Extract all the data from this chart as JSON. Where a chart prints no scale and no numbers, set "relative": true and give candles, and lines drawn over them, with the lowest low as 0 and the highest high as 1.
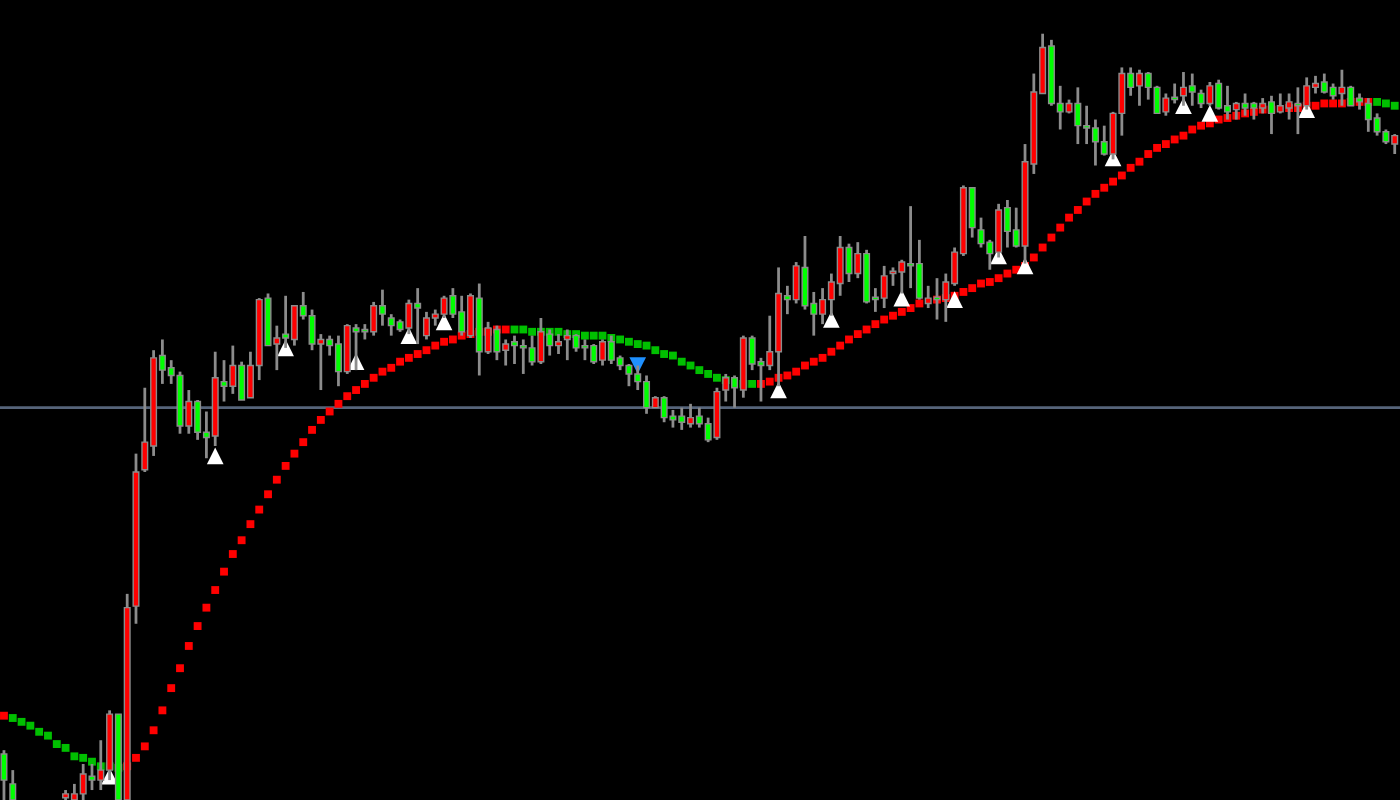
{
  "chart_data": {
    "type": "candlestick",
    "relative": true,
    "categories": [
      null,
      null,
      null,
      null,
      null,
      null,
      null,
      null,
      null,
      null,
      null,
      null,
      null,
      null,
      null,
      null,
      null,
      null,
      null,
      null,
      null,
      null,
      null,
      null,
      null,
      null,
      null,
      null,
      null,
      null,
      null,
      null,
      null,
      null,
      null,
      null,
      null,
      null,
      null,
      null,
      null,
      null,
      null,
      null,
      null,
      null,
      null,
      null,
      null,
      null,
      null,
      null,
      null,
      null,
      null,
      null,
      null,
      null,
      null,
      null,
      null,
      null,
      null,
      null,
      null,
      null,
      null,
      null,
      null,
      null,
      null,
      null,
      null,
      null,
      null,
      null,
      null,
      null,
      null,
      null,
      null,
      null,
      null,
      null,
      null,
      null,
      null,
      null,
      null,
      null,
      null,
      null,
      null,
      null,
      null,
      null,
      null,
      null,
      null,
      null,
      null,
      null,
      null,
      null,
      null,
      null,
      null,
      null,
      null,
      null,
      null,
      null,
      null,
      null,
      null,
      null,
      null,
      null,
      null,
      null,
      null,
      null,
      null,
      null,
      null,
      null,
      null,
      null,
      null,
      null,
      null,
      null,
      null,
      null,
      null,
      null,
      null,
      null,
      null,
      null,
      null,
      null,
      null,
      null,
      null,
      null,
      null,
      null,
      null,
      null,
      null,
      null,
      null,
      null,
      null,
      null,
      null,
      null,
      null
    ],
    "ohlc": [
      [
        0.06,
        0.065,
        0,
        0.026
      ],
      [
        0.021,
        0.039,
        0,
        0
      ],
      null,
      null,
      null,
      null,
      null,
      [
        0.003,
        0.013,
        0,
        0.008
      ],
      [
        0,
        0.021,
        0,
        0.008
      ],
      [
        0.008,
        0.047,
        0,
        0.034
      ],
      [
        0.031,
        0.047,
        0.013,
        0.026
      ],
      [
        0.026,
        0.078,
        0.013,
        0.039
      ],
      [
        0.039,
        0.117,
        0.026,
        0.112
      ],
      [
        0.112,
        0.112,
        0,
        0
      ],
      [
        0,
        0.269,
        0,
        0.251
      ],
      [
        0.253,
        0.452,
        0.23,
        0.428
      ],
      [
        0.431,
        0.538,
        0.428,
        0.467
      ],
      [
        0.462,
        0.587,
        0.449,
        0.577
      ],
      [
        0.58,
        0.601,
        0.543,
        0.561
      ],
      [
        0.564,
        0.574,
        0.543,
        0.554
      ],
      [
        0.554,
        0.559,
        0.478,
        0.488
      ],
      [
        0.488,
        0.535,
        0.478,
        0.52
      ],
      [
        0.52,
        0.522,
        0.47,
        0.48
      ],
      [
        0.48,
        0.507,
        0.446,
        0.473
      ],
      [
        0.475,
        0.585,
        0.462,
        0.551
      ],
      [
        0.546,
        0.574,
        0.52,
        0.54
      ],
      [
        0.54,
        0.593,
        0.53,
        0.567
      ],
      [
        0.567,
        0.572,
        0.522,
        0.522
      ],
      [
        0.525,
        0.585,
        0.525,
        0.567
      ],
      [
        0.567,
        0.655,
        0.548,
        0.653
      ],
      [
        0.655,
        0.661,
        0.593,
        0.593
      ],
      [
        0.595,
        0.619,
        0.561,
        0.603
      ],
      [
        0.608,
        0.658,
        0.59,
        0.603
      ],
      [
        0.601,
        0.645,
        0.593,
        0.645
      ],
      [
        0.645,
        0.663,
        0.627,
        0.632
      ],
      [
        0.632,
        0.64,
        0.587,
        0.595
      ],
      [
        0.595,
        0.608,
        0.535,
        0.601
      ],
      [
        0.601,
        0.606,
        0.58,
        0.593
      ],
      [
        0.595,
        0.606,
        0.54,
        0.559
      ],
      [
        0.559,
        0.621,
        0.556,
        0.619
      ],
      [
        0.616,
        0.621,
        0.561,
        0.611
      ],
      [
        0.614,
        0.621,
        0.601,
        0.611
      ],
      [
        0.611,
        0.65,
        0.606,
        0.645
      ],
      [
        0.645,
        0.666,
        0.619,
        0.634
      ],
      [
        0.629,
        0.634,
        0.606,
        0.619
      ],
      [
        0.624,
        0.627,
        0.611,
        0.614
      ],
      [
        0.616,
        0.653,
        0.608,
        0.648
      ],
      [
        0.648,
        0.668,
        0.595,
        0.642
      ],
      [
        0.606,
        0.637,
        0.601,
        0.629
      ],
      [
        0.629,
        0.64,
        0.619,
        0.634
      ],
      [
        0.634,
        0.658,
        0.629,
        0.655
      ],
      [
        0.658,
        0.668,
        0.629,
        0.634
      ],
      [
        0.637,
        0.658,
        0.606,
        0.611
      ],
      [
        0.606,
        0.661,
        0.603,
        0.658
      ],
      [
        0.655,
        0.674,
        0.554,
        0.585
      ],
      [
        0.585,
        0.624,
        0.582,
        0.616
      ],
      [
        0.614,
        0.619,
        0.574,
        0.585
      ],
      [
        0.587,
        0.601,
        0.567,
        0.595
      ],
      [
        0.598,
        0.606,
        0.569,
        0.593
      ],
      [
        0.593,
        0.601,
        0.556,
        0.59
      ],
      [
        0.59,
        0.606,
        0.567,
        0.572
      ],
      [
        0.572,
        0.629,
        0.569,
        0.611
      ],
      [
        0.608,
        0.614,
        0.58,
        0.593
      ],
      [
        0.593,
        0.608,
        0.582,
        0.598
      ],
      [
        0.601,
        0.614,
        0.574,
        0.606
      ],
      [
        0.606,
        0.608,
        0.585,
        0.59
      ],
      [
        0.593,
        0.601,
        0.574,
        0.59
      ],
      [
        0.593,
        0.595,
        0.569,
        0.572
      ],
      [
        0.574,
        0.601,
        0.567,
        0.598
      ],
      [
        0.598,
        0.606,
        0.569,
        0.574
      ],
      [
        0.577,
        0.58,
        0.561,
        0.567
      ],
      [
        0.567,
        0.569,
        0.54,
        0.556
      ],
      [
        0.556,
        0.567,
        0.535,
        0.546
      ],
      [
        0.546,
        0.554,
        0.504,
        0.512
      ],
      [
        0.512,
        0.527,
        0.512,
        0.525
      ],
      [
        0.525,
        0.527,
        0.493,
        0.499
      ],
      [
        0.501,
        0.509,
        0.486,
        0.496
      ],
      [
        0.501,
        0.512,
        0.483,
        0.493
      ],
      [
        0.491,
        0.517,
        0.486,
        0.499
      ],
      [
        0.501,
        0.512,
        0.486,
        0.491
      ],
      [
        0.491,
        0.499,
        0.467,
        0.47
      ],
      [
        0.473,
        0.538,
        0.47,
        0.533
      ],
      [
        0.535,
        0.556,
        0.52,
        0.551
      ],
      [
        0.551,
        0.554,
        0.512,
        0.538
      ],
      [
        0.535,
        0.606,
        0.525,
        0.603
      ],
      [
        0.603,
        0.606,
        0.561,
        0.569
      ],
      [
        0.572,
        0.577,
        0.52,
        0.567
      ],
      [
        0.567,
        0.632,
        0.561,
        0.585
      ],
      [
        0.585,
        0.695,
        0.54,
        0.661
      ],
      [
        0.658,
        0.671,
        0.634,
        0.653
      ],
      [
        0.653,
        0.702,
        0.648,
        0.697
      ],
      [
        0.695,
        0.736,
        0.64,
        0.645
      ],
      [
        0.648,
        0.663,
        0.606,
        0.634
      ],
      [
        0.634,
        0.668,
        0.621,
        0.653
      ],
      [
        0.653,
        0.687,
        0.632,
        0.676
      ],
      [
        0.674,
        0.736,
        0.658,
        0.721
      ],
      [
        0.721,
        0.726,
        0.676,
        0.687
      ],
      [
        0.687,
        0.728,
        0.681,
        0.713
      ],
      [
        0.713,
        0.718,
        0.648,
        0.65
      ],
      [
        0.655,
        0.668,
        0.637,
        0.653
      ],
      [
        0.655,
        0.697,
        0.642,
        0.684
      ],
      [
        0.687,
        0.695,
        0.671,
        0.689
      ],
      [
        0.689,
        0.705,
        0.661,
        0.702
      ],
      [
        0.7,
        0.775,
        0.668,
        0.697
      ],
      [
        0.7,
        0.731,
        0.653,
        0.655
      ],
      [
        0.648,
        0.671,
        0.642,
        0.655
      ],
      [
        0.655,
        0.681,
        0.627,
        0.653
      ],
      [
        0.653,
        0.687,
        0.624,
        0.676
      ],
      [
        0.674,
        0.721,
        0.671,
        0.715
      ],
      [
        0.713,
        0.802,
        0.71,
        0.799
      ],
      [
        0.799,
        0.799,
        0.734,
        0.747
      ],
      [
        0.744,
        0.76,
        0.721,
        0.726
      ],
      [
        0.728,
        0.731,
        0.692,
        0.713
      ],
      [
        0.715,
        0.778,
        0.708,
        0.77
      ],
      [
        0.773,
        0.783,
        0.721,
        0.742
      ],
      [
        0.744,
        0.773,
        0.721,
        0.723
      ],
      [
        0.723,
        0.856,
        0.7,
        0.833
      ],
      [
        0.83,
        0.948,
        0.817,
        0.924
      ],
      [
        0.922,
        1,
        0.922,
        0.982
      ],
      [
        0.984,
        0.992,
        0.906,
        0.909
      ],
      [
        0.909,
        0.932,
        0.875,
        0.898
      ],
      [
        0.898,
        0.914,
        0.896,
        0.909
      ],
      [
        0.909,
        0.93,
        0.856,
        0.88
      ],
      [
        0.88,
        0.906,
        0.856,
        0.877
      ],
      [
        0.877,
        0.888,
        0.828,
        0.859
      ],
      [
        0.859,
        0.88,
        0.841,
        0.843
      ],
      [
        0.843,
        0.898,
        0.836,
        0.896
      ],
      [
        0.896,
        0.956,
        0.867,
        0.948
      ],
      [
        0.948,
        0.956,
        0.919,
        0.93
      ],
      [
        0.932,
        0.953,
        0.906,
        0.948
      ],
      [
        0.948,
        0.95,
        0.914,
        0.93
      ],
      [
        0.93,
        0.932,
        0.896,
        0.896
      ],
      [
        0.898,
        0.922,
        0.893,
        0.916
      ],
      [
        0.916,
        0.935,
        0.909,
        0.914
      ],
      [
        0.919,
        0.95,
        0.906,
        0.93
      ],
      [
        0.932,
        0.948,
        0.906,
        0.924
      ],
      [
        0.922,
        0.927,
        0.903,
        0.909
      ],
      [
        0.909,
        0.937,
        0.906,
        0.932
      ],
      [
        0.935,
        0.94,
        0.901,
        0.903
      ],
      [
        0.906,
        0.932,
        0.888,
        0.898
      ],
      [
        0.901,
        0.911,
        0.888,
        0.909
      ],
      [
        0.909,
        0.922,
        0.893,
        0.903
      ],
      [
        0.909,
        0.911,
        0.888,
        0.903
      ],
      [
        0.903,
        0.916,
        0.896,
        0.909
      ],
      [
        0.911,
        0.919,
        0.869,
        0.896
      ],
      [
        0.898,
        0.922,
        0.896,
        0.906
      ],
      [
        0.903,
        0.922,
        0.888,
        0.911
      ],
      [
        0.909,
        0.93,
        0.869,
        0.906
      ],
      [
        0.906,
        0.943,
        0.901,
        0.932
      ],
      [
        0.93,
        0.945,
        0.922,
        0.935
      ],
      [
        0.937,
        0.948,
        0.922,
        0.924
      ],
      [
        0.93,
        0.935,
        0.914,
        0.919
      ],
      [
        0.922,
        0.953,
        0.906,
        0.93
      ],
      [
        0.93,
        0.932,
        0.906,
        0.906
      ],
      [
        0.916,
        0.922,
        0.901,
        0.911
      ],
      [
        0.909,
        0.916,
        0.872,
        0.888
      ],
      [
        0.89,
        0.896,
        0.867,
        0.872
      ],
      [
        0.872,
        0.875,
        0.856,
        0.859
      ],
      [
        0.856,
        0.869,
        0.843,
        0.867
      ]
    ],
    "colors": [
      "#00ff00",
      "#00ff00",
      null,
      null,
      null,
      null,
      null,
      "#ff0000",
      "#ff0000",
      "#ff0000",
      "#00ff00",
      "#ff0000",
      "#ff0000",
      "#00ff00",
      "#ff0000",
      "#ff0000",
      "#ff0000",
      "#ff0000",
      "#00ff00",
      "#00ff00",
      "#00ff00",
      "#ff0000",
      "#00ff00",
      "#00ff00",
      "#ff0000",
      "#00ff00",
      "#ff0000",
      "#00ff00",
      "#ff0000",
      "#ff0000",
      "#00ff00",
      "#ff0000",
      "#00ff00",
      "#ff0000",
      "#00ff00",
      "#00ff00",
      "#ff0000",
      "#00ff00",
      "#00ff00",
      "#ff0000",
      "#00ff00",
      "#00ff00",
      "#ff0000",
      "#00ff00",
      "#00ff00",
      "#00ff00",
      "#ff0000",
      "#00ff00",
      "#ff0000",
      "#ff0000",
      "#ff0000",
      "#00ff00",
      "#00ff00",
      "#ff0000",
      "#00ff00",
      "#ff0000",
      "#00ff00",
      "#ff0000",
      "#00ff00",
      "#00ff00",
      "#00ff00",
      "#ff0000",
      "#00ff00",
      "#ff0000",
      "#ff0000",
      "#00ff00",
      "#00ff00",
      "#00ff00",
      "#ff0000",
      "#00ff00",
      "#00ff00",
      "#00ff00",
      "#00ff00",
      "#00ff00",
      "#ff0000",
      "#00ff00",
      "#00ff00",
      "#00ff00",
      "#ff0000",
      "#00ff00",
      "#00ff00",
      "#ff0000",
      "#ff0000",
      "#00ff00",
      "#ff0000",
      "#00ff00",
      "#00ff00",
      "#ff0000",
      "#ff0000",
      "#00ff00",
      "#ff0000",
      "#00ff00",
      "#00ff00",
      "#ff0000",
      "#ff0000",
      "#ff0000",
      "#00ff00",
      "#ff0000",
      "#00ff00",
      "#00ff00",
      "#ff0000",
      "#ff0000",
      "#ff0000",
      "#00ff00",
      "#00ff00",
      "#ff0000",
      "#00ff00",
      "#ff0000",
      "#ff0000",
      "#ff0000",
      "#00ff00",
      "#00ff00",
      "#00ff00",
      "#ff0000",
      "#00ff00",
      "#00ff00",
      "#ff0000",
      "#ff0000",
      "#ff0000",
      "#00ff00",
      "#00ff00",
      "#ff0000",
      "#00ff00",
      "#00ff00",
      "#00ff00",
      "#00ff00",
      "#ff0000",
      "#ff0000",
      "#00ff00",
      "#ff0000",
      "#00ff00",
      "#00ff00",
      "#ff0000",
      "#00ff00",
      "#ff0000",
      "#00ff00",
      "#00ff00",
      "#ff0000",
      "#00ff00",
      "#00ff00",
      "#ff0000",
      "#00ff00",
      "#00ff00",
      "#ff0000",
      "#00ff00",
      "#ff0000",
      "#ff0000",
      "#00ff00",
      "#ff0000",
      "#ff0000",
      "#00ff00",
      "#00ff00",
      "#ff0000",
      "#00ff00",
      "#00ff00",
      "#00ff00",
      "#00ff00",
      "#00ff00",
      "#ff0000"
    ],
    "series": [
      {
        "type": "scatter",
        "marker": "square",
        "values": [
          0.11,
          0.107,
          0.102,
          0.097,
          0.089,
          0.084,
          0.073,
          0.068,
          0.057,
          0.055,
          0.05,
          0.044,
          0.044,
          0.042,
          0.044,
          0.055,
          0.07,
          0.091,
          0.117,
          0.146,
          0.172,
          0.201,
          0.227,
          0.251,
          0.274,
          0.298,
          0.321,
          0.339,
          0.36,
          0.379,
          0.399,
          0.418,
          0.436,
          0.452,
          0.467,
          0.483,
          0.496,
          0.507,
          0.517,
          0.527,
          0.535,
          0.543,
          0.551,
          0.559,
          0.564,
          0.572,
          0.577,
          0.582,
          0.587,
          0.593,
          0.598,
          0.601,
          0.606,
          0.608,
          0.611,
          0.611,
          0.614,
          0.614,
          0.614,
          0.614,
          0.611,
          0.611,
          0.611,
          0.611,
          0.608,
          0.608,
          0.606,
          0.606,
          0.606,
          0.603,
          0.601,
          0.598,
          0.595,
          0.593,
          0.587,
          0.582,
          0.58,
          0.572,
          0.567,
          0.561,
          0.556,
          0.551,
          0.548,
          null,
          0.543,
          0.543,
          0.543,
          0.546,
          0.551,
          0.554,
          0.559,
          0.567,
          0.572,
          0.577,
          0.585,
          0.593,
          0.601,
          0.608,
          0.614,
          0.621,
          0.627,
          0.632,
          0.637,
          0.642,
          0.648,
          null,
          0.653,
          0.655,
          0.658,
          0.663,
          0.668,
          0.674,
          0.676,
          0.681,
          0.687,
          0.692,
          0.697,
          0.708,
          0.721,
          0.734,
          0.747,
          0.76,
          0.77,
          0.781,
          0.791,
          0.799,
          0.807,
          0.815,
          0.825,
          0.833,
          0.843,
          0.851,
          0.856,
          0.862,
          0.867,
          0.875,
          0.88,
          0.883,
          0.888,
          0.89,
          0.893,
          0.896,
          0.898,
          0.901,
          0.901,
          null,
          0.903,
          0.903,
          0.906,
          0.906,
          0.909,
          0.909,
          0.909,
          0.911,
          0.911,
          0.911,
          0.911,
          0.909,
          0.906
        ],
        "colors": [
          "#ff0000",
          "#00c000",
          "#00c000",
          "#00c000",
          "#00c000",
          "#00c000",
          "#00c000",
          "#00c000",
          "#00c000",
          "#00c000",
          "#00c000",
          "#00c000",
          "#00c000",
          "#00c000",
          "#ff0000",
          "#ff0000",
          "#ff0000",
          "#ff0000",
          "#ff0000",
          "#ff0000",
          "#ff0000",
          "#ff0000",
          "#ff0000",
          "#ff0000",
          "#ff0000",
          "#ff0000",
          "#ff0000",
          "#ff0000",
          "#ff0000",
          "#ff0000",
          "#ff0000",
          "#ff0000",
          "#ff0000",
          "#ff0000",
          "#ff0000",
          "#ff0000",
          "#ff0000",
          "#ff0000",
          "#ff0000",
          "#ff0000",
          "#ff0000",
          "#ff0000",
          "#ff0000",
          "#ff0000",
          "#ff0000",
          "#ff0000",
          "#ff0000",
          "#ff0000",
          "#ff0000",
          "#ff0000",
          "#ff0000",
          "#ff0000",
          "#ff0000",
          "#ff0000",
          "#ff0000",
          "#ff0000",
          "#ff0000",
          "#ff0000",
          "#00c000",
          "#00c000",
          "#00c000",
          "#00c000",
          "#00c000",
          "#00c000",
          "#00c000",
          "#00c000",
          "#00c000",
          "#00c000",
          "#00c000",
          "#00c000",
          "#00c000",
          "#00c000",
          "#00c000",
          "#00c000",
          "#00c000",
          "#00c000",
          "#00c000",
          "#00c000",
          "#00c000",
          "#00c000",
          "#00c000",
          "#00c000",
          "#00c000",
          "#00c000",
          "#00c000",
          "#00c000",
          "#ff0000",
          "#ff0000",
          "#ff0000",
          "#ff0000",
          "#ff0000",
          "#ff0000",
          "#ff0000",
          "#ff0000",
          "#ff0000",
          "#ff0000",
          "#ff0000",
          "#ff0000",
          "#ff0000",
          "#ff0000",
          "#ff0000",
          "#ff0000",
          "#ff0000",
          "#ff0000",
          "#ff0000",
          "#ff0000",
          "#ff0000",
          "#ff0000",
          "#ff0000",
          "#ff0000",
          "#ff0000",
          "#ff0000",
          "#ff0000",
          "#ff0000",
          "#ff0000",
          "#ff0000",
          "#ff0000",
          "#ff0000",
          "#ff0000",
          "#ff0000",
          "#ff0000",
          "#ff0000",
          "#ff0000",
          "#ff0000",
          "#ff0000",
          "#ff0000",
          "#ff0000",
          "#ff0000",
          "#ff0000",
          "#ff0000",
          "#ff0000",
          "#ff0000",
          "#ff0000",
          "#ff0000",
          "#ff0000",
          "#ff0000",
          "#ff0000",
          "#ff0000",
          "#ff0000",
          "#ff0000",
          "#ff0000",
          "#ff0000",
          "#ff0000",
          "#ff0000",
          "#ff0000",
          "#ff0000",
          "#ff0000",
          "#ff0000",
          "#ff0000",
          "#ff0000",
          "#ff0000",
          "#ff0000",
          "#ff0000",
          "#ff0000",
          "#ff0000",
          "#ff0000",
          "#00c000",
          "#00c000",
          "#00c000"
        ]
      },
      {
        "type": "scatter",
        "marker": "triangle",
        "color": "#ffffff",
        "values": [
          null,
          null,
          null,
          null,
          null,
          null,
          null,
          null,
          null,
          null,
          null,
          null,
          0.031,
          null,
          null,
          null,
          null,
          null,
          null,
          null,
          null,
          null,
          null,
          null,
          0.449,
          null,
          null,
          null,
          null,
          null,
          null,
          null,
          0.59,
          null,
          null,
          null,
          null,
          null,
          null,
          null,
          0.572,
          null,
          null,
          null,
          null,
          null,
          0.606,
          null,
          null,
          null,
          0.624,
          null,
          null,
          null,
          null,
          null,
          null,
          null,
          null,
          null,
          null,
          null,
          null,
          null,
          null,
          null,
          null,
          null,
          null,
          null,
          null,
          null,
          null,
          null,
          null,
          null,
          null,
          null,
          null,
          null,
          null,
          null,
          null,
          null,
          null,
          null,
          null,
          null,
          0.535,
          null,
          null,
          null,
          null,
          null,
          0.627,
          null,
          null,
          null,
          null,
          null,
          null,
          null,
          0.655,
          null,
          null,
          null,
          null,
          null,
          0.653,
          null,
          null,
          null,
          null,
          0.71,
          null,
          null,
          0.697,
          null,
          null,
          null,
          null,
          null,
          null,
          null,
          null,
          null,
          0.838,
          null,
          null,
          null,
          null,
          null,
          null,
          null,
          0.906,
          null,
          null,
          0.896,
          null,
          null,
          null,
          null,
          null,
          null,
          null,
          null,
          null,
          null,
          0.901,
          null,
          null,
          null,
          null,
          null,
          null,
          null,
          null,
          null,
          null
        ]
      },
      {
        "type": "scatter",
        "marker": "triangle_down",
        "color": "#1e90ff",
        "values": [
          null,
          null,
          null,
          null,
          null,
          null,
          null,
          null,
          null,
          null,
          null,
          null,
          null,
          null,
          null,
          null,
          null,
          null,
          null,
          null,
          null,
          null,
          null,
          null,
          null,
          null,
          null,
          null,
          null,
          null,
          null,
          null,
          null,
          null,
          null,
          null,
          null,
          null,
          null,
          null,
          null,
          null,
          null,
          null,
          null,
          null,
          null,
          null,
          null,
          null,
          null,
          null,
          null,
          null,
          null,
          null,
          null,
          null,
          null,
          null,
          null,
          null,
          null,
          null,
          null,
          null,
          null,
          null,
          null,
          null,
          null,
          null,
          0.567,
          null,
          null,
          null,
          null,
          null,
          null,
          null,
          null,
          null,
          null,
          null,
          null,
          null,
          null,
          null,
          null,
          null,
          null,
          null,
          null,
          null,
          null,
          null,
          null,
          null,
          null,
          null,
          null,
          null,
          null,
          null,
          null,
          null,
          null,
          null,
          null,
          null,
          null,
          null,
          null,
          null,
          null,
          null,
          null,
          null,
          null,
          null,
          null,
          null,
          null,
          null,
          null,
          null,
          null,
          null,
          null,
          null,
          null,
          null,
          null,
          null,
          null,
          null,
          null,
          null,
          null,
          null,
          null,
          null,
          null,
          null,
          null,
          null,
          null,
          null,
          null,
          null,
          null,
          null,
          null,
          null,
          null,
          null,
          null,
          null,
          null
        ]
      }
    ],
    "ref_lines": [
      {
        "axis": "y",
        "value": 0.512,
        "color": "#56647a"
      }
    ]
  }
}
